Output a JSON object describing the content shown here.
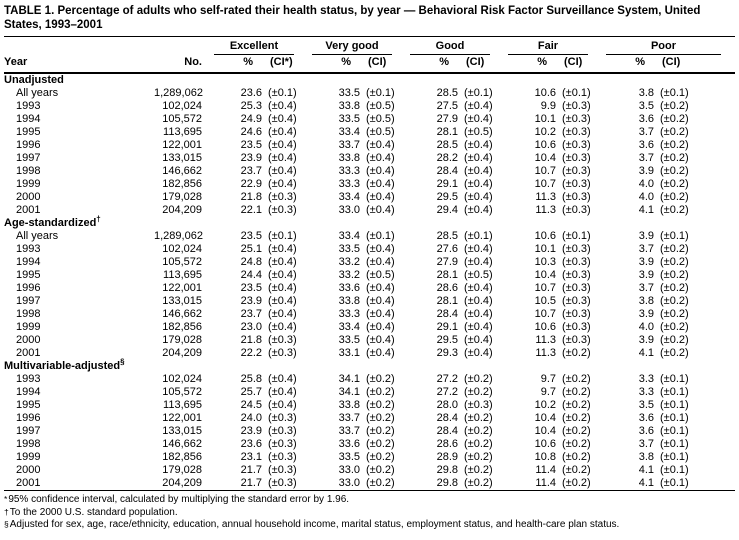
{
  "colors": {
    "text": "#000000",
    "background": "#ffffff",
    "rule": "#000000"
  },
  "title": "TABLE 1. Percentage of adults who self-rated their health status, by year — Behavioral Risk Factor Surveillance System, United States, 1993–2001",
  "table": {
    "row_header_label": "Year",
    "count_label": "No.",
    "groups": [
      {
        "label": "Excellent",
        "pct_label": "%",
        "ci_label": "(CI*)"
      },
      {
        "label": "Very good",
        "pct_label": "%",
        "ci_label": "(CI)"
      },
      {
        "label": "Good",
        "pct_label": "%",
        "ci_label": "(CI)"
      },
      {
        "label": "Fair",
        "pct_label": "%",
        "ci_label": "(CI)"
      },
      {
        "label": "Poor",
        "pct_label": "%",
        "ci_label": "(CI)"
      }
    ],
    "sections": [
      {
        "label": "Unadjusted",
        "rows": [
          {
            "year": "All years",
            "no": "1,289,062",
            "cells": [
              "23.6",
              "(±0.1)",
              "33.5",
              "(±0.1)",
              "28.5",
              "(±0.1)",
              "10.6",
              "(±0.1)",
              "3.8",
              "(±0.1)"
            ]
          },
          {
            "year": "1993",
            "no": "102,024",
            "cells": [
              "25.3",
              "(±0.4)",
              "33.8",
              "(±0.5)",
              "27.5",
              "(±0.4)",
              "9.9",
              "(±0.3)",
              "3.5",
              "(±0.2)"
            ]
          },
          {
            "year": "1994",
            "no": "105,572",
            "cells": [
              "24.9",
              "(±0.4)",
              "33.5",
              "(±0.5)",
              "27.9",
              "(±0.4)",
              "10.1",
              "(±0.3)",
              "3.6",
              "(±0.2)"
            ]
          },
          {
            "year": "1995",
            "no": "113,695",
            "cells": [
              "24.6",
              "(±0.4)",
              "33.4",
              "(±0.5)",
              "28.1",
              "(±0.5)",
              "10.2",
              "(±0.3)",
              "3.7",
              "(±0.2)"
            ]
          },
          {
            "year": "1996",
            "no": "122,001",
            "cells": [
              "23.5",
              "(±0.4)",
              "33.7",
              "(±0.4)",
              "28.5",
              "(±0.4)",
              "10.6",
              "(±0.3)",
              "3.6",
              "(±0.2)"
            ]
          },
          {
            "year": "1997",
            "no": "133,015",
            "cells": [
              "23.9",
              "(±0.4)",
              "33.8",
              "(±0.4)",
              "28.2",
              "(±0.4)",
              "10.4",
              "(±0.3)",
              "3.7",
              "(±0.2)"
            ]
          },
          {
            "year": "1998",
            "no": "146,662",
            "cells": [
              "23.7",
              "(±0.4)",
              "33.3",
              "(±0.4)",
              "28.4",
              "(±0.4)",
              "10.7",
              "(±0.3)",
              "3.9",
              "(±0.2)"
            ]
          },
          {
            "year": "1999",
            "no": "182,856",
            "cells": [
              "22.9",
              "(±0.4)",
              "33.3",
              "(±0.4)",
              "29.1",
              "(±0.4)",
              "10.7",
              "(±0.3)",
              "4.0",
              "(±0.2)"
            ]
          },
          {
            "year": "2000",
            "no": "179,028",
            "cells": [
              "21.8",
              "(±0.3)",
              "33.4",
              "(±0.4)",
              "29.5",
              "(±0.4)",
              "11.3",
              "(±0.3)",
              "4.0",
              "(±0.2)"
            ]
          },
          {
            "year": "2001",
            "no": "204,209",
            "cells": [
              "22.1",
              "(±0.3)",
              "33.0",
              "(±0.4)",
              "29.4",
              "(±0.4)",
              "11.3",
              "(±0.3)",
              "4.1",
              "(±0.2)"
            ]
          }
        ]
      },
      {
        "label": "Age-standardized",
        "marker": "†",
        "rows": [
          {
            "year": "All years",
            "no": "1,289,062",
            "cells": [
              "23.5",
              "(±0.1)",
              "33.4",
              "(±0.1)",
              "28.5",
              "(±0.1)",
              "10.6",
              "(±0.1)",
              "3.9",
              "(±0.1)"
            ]
          },
          {
            "year": "1993",
            "no": "102,024",
            "cells": [
              "25.1",
              "(±0.4)",
              "33.5",
              "(±0.4)",
              "27.6",
              "(±0.4)",
              "10.1",
              "(±0.3)",
              "3.7",
              "(±0.2)"
            ]
          },
          {
            "year": "1994",
            "no": "105,572",
            "cells": [
              "24.8",
              "(±0.4)",
              "33.2",
              "(±0.4)",
              "27.9",
              "(±0.4)",
              "10.3",
              "(±0.3)",
              "3.9",
              "(±0.2)"
            ]
          },
          {
            "year": "1995",
            "no": "113,695",
            "cells": [
              "24.4",
              "(±0.4)",
              "33.2",
              "(±0.5)",
              "28.1",
              "(±0.5)",
              "10.4",
              "(±0.3)",
              "3.9",
              "(±0.2)"
            ]
          },
          {
            "year": "1996",
            "no": "122,001",
            "cells": [
              "23.5",
              "(±0.4)",
              "33.6",
              "(±0.4)",
              "28.6",
              "(±0.4)",
              "10.7",
              "(±0.3)",
              "3.7",
              "(±0.2)"
            ]
          },
          {
            "year": "1997",
            "no": "133,015",
            "cells": [
              "23.9",
              "(±0.4)",
              "33.8",
              "(±0.4)",
              "28.1",
              "(±0.4)",
              "10.5",
              "(±0.3)",
              "3.8",
              "(±0.2)"
            ]
          },
          {
            "year": "1998",
            "no": "146,662",
            "cells": [
              "23.7",
              "(±0.4)",
              "33.3",
              "(±0.4)",
              "28.4",
              "(±0.4)",
              "10.7",
              "(±0.3)",
              "3.9",
              "(±0.2)"
            ]
          },
          {
            "year": "1999",
            "no": "182,856",
            "cells": [
              "23.0",
              "(±0.4)",
              "33.4",
              "(±0.4)",
              "29.1",
              "(±0.4)",
              "10.6",
              "(±0.3)",
              "4.0",
              "(±0.2)"
            ]
          },
          {
            "year": "2000",
            "no": "179,028",
            "cells": [
              "21.8",
              "(±0.3)",
              "33.5",
              "(±0.4)",
              "29.5",
              "(±0.4)",
              "11.3",
              "(±0.3)",
              "3.9",
              "(±0.2)"
            ]
          },
          {
            "year": "2001",
            "no": "204,209",
            "cells": [
              "22.2",
              "(±0.3)",
              "33.1",
              "(±0.4)",
              "29.3",
              "(±0.4)",
              "11.3",
              "(±0.2)",
              "4.1",
              "(±0.2)"
            ]
          }
        ]
      },
      {
        "label": "Multivariable-adjusted",
        "marker": "§",
        "rows": [
          {
            "year": "1993",
            "no": "102,024",
            "cells": [
              "25.8",
              "(±0.4)",
              "34.1",
              "(±0.2)",
              "27.2",
              "(±0.2)",
              "9.7",
              "(±0.2)",
              "3.3",
              "(±0.1)"
            ]
          },
          {
            "year": "1994",
            "no": "105,572",
            "cells": [
              "25.7",
              "(±0.4)",
              "34.1",
              "(±0.2)",
              "27.2",
              "(±0.2)",
              "9.7",
              "(±0.2)",
              "3.3",
              "(±0.1)"
            ]
          },
          {
            "year": "1995",
            "no": "113,695",
            "cells": [
              "24.5",
              "(±0.4)",
              "33.8",
              "(±0.2)",
              "28.0",
              "(±0.3)",
              "10.2",
              "(±0.2)",
              "3.5",
              "(±0.1)"
            ]
          },
          {
            "year": "1996",
            "no": "122,001",
            "cells": [
              "24.0",
              "(±0.3)",
              "33.7",
              "(±0.2)",
              "28.4",
              "(±0.2)",
              "10.4",
              "(±0.2)",
              "3.6",
              "(±0.1)"
            ]
          },
          {
            "year": "1997",
            "no": "133,015",
            "cells": [
              "23.9",
              "(±0.3)",
              "33.7",
              "(±0.2)",
              "28.4",
              "(±0.2)",
              "10.4",
              "(±0.2)",
              "3.6",
              "(±0.1)"
            ]
          },
          {
            "year": "1998",
            "no": "146,662",
            "cells": [
              "23.6",
              "(±0.3)",
              "33.6",
              "(±0.2)",
              "28.6",
              "(±0.2)",
              "10.6",
              "(±0.2)",
              "3.7",
              "(±0.1)"
            ]
          },
          {
            "year": "1999",
            "no": "182,856",
            "cells": [
              "23.1",
              "(±0.3)",
              "33.5",
              "(±0.2)",
              "28.9",
              "(±0.2)",
              "10.8",
              "(±0.2)",
              "3.8",
              "(±0.1)"
            ]
          },
          {
            "year": "2000",
            "no": "179,028",
            "cells": [
              "21.7",
              "(±0.3)",
              "33.0",
              "(±0.2)",
              "29.8",
              "(±0.2)",
              "11.4",
              "(±0.2)",
              "4.1",
              "(±0.1)"
            ]
          },
          {
            "year": "2001",
            "no": "204,209",
            "cells": [
              "21.7",
              "(±0.3)",
              "33.0",
              "(±0.2)",
              "29.8",
              "(±0.2)",
              "11.4",
              "(±0.2)",
              "4.1",
              "(±0.1)"
            ]
          }
        ]
      }
    ]
  },
  "footnotes": [
    {
      "marker": "*",
      "text": "95% confidence interval, calculated by multiplying the standard error by 1.96."
    },
    {
      "marker": "†",
      "text": "To the 2000 U.S. standard population."
    },
    {
      "marker": "§",
      "text": "Adjusted for sex, age, race/ethnicity, education, annual household income, marital status, employment status, and health-care plan status."
    }
  ]
}
